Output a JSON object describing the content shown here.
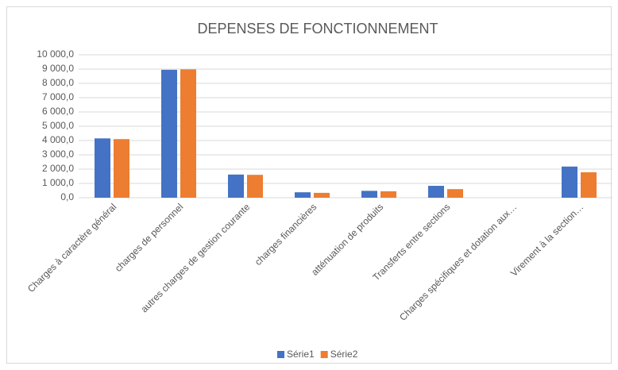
{
  "chart_data": {
    "type": "bar",
    "title": "DEPENSES DE FONCTIONNEMENT",
    "categories": [
      "Charges à caractère général",
      "charges de personnel",
      "autres charges de gestion courante",
      "charges financières",
      "atténuation de produits",
      "Transferts entre sections",
      "Charges spécifiques et dotation aux…",
      "Virement à la section…"
    ],
    "series": [
      {
        "name": "Série1",
        "color": "#4472c4",
        "values": [
          4150,
          8950,
          1620,
          380,
          480,
          830,
          0,
          2180
        ]
      },
      {
        "name": "Série2",
        "color": "#ed7d31",
        "values": [
          4100,
          8980,
          1600,
          340,
          450,
          600,
          0,
          1780
        ]
      }
    ],
    "ylim": [
      0,
      10000
    ],
    "yticks": [
      {
        "value": 0,
        "label": "0,0"
      },
      {
        "value": 1000,
        "label": "1 000,0"
      },
      {
        "value": 2000,
        "label": "2 000,0"
      },
      {
        "value": 3000,
        "label": "3 000,0"
      },
      {
        "value": 4000,
        "label": "4 000,0"
      },
      {
        "value": 5000,
        "label": "5 000,0"
      },
      {
        "value": 6000,
        "label": "6 000,0"
      },
      {
        "value": 7000,
        "label": "7 000,0"
      },
      {
        "value": 8000,
        "label": "8 000,0"
      },
      {
        "value": 9000,
        "label": "9 000,0"
      },
      {
        "value": 10000,
        "label": "10 000,0"
      }
    ],
    "grid": true,
    "legend": "bottom"
  }
}
